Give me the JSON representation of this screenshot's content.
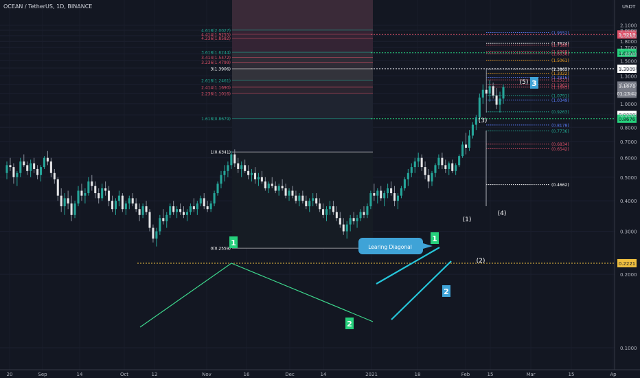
{
  "header": {
    "title": "OCEAN / TetherUS, 1D, BINANCE",
    "currency": "USDT"
  },
  "colors": {
    "background": "#131722",
    "up_candle": "#26a69a",
    "down_candle": "#ef5350",
    "candle_body_up": "#d1d4dc",
    "fib_green": "#22ab94",
    "fib_red": "#e0526a",
    "fib_white": "#ffffff",
    "fib_blue": "#5b7cfa",
    "fib_orange": "#f0a020",
    "trend_teal": "#26c6da",
    "label_green": "#26d07c",
    "label_blue": "#3fa3d7"
  },
  "chart_data": {
    "type": "candlestick",
    "symbol": "OCEAN / TetherUS",
    "interval": "1D",
    "exchange": "BINANCE",
    "y_scale": "log",
    "ylim": [
      0.08,
      2.2
    ],
    "y_ticks": [
      "2.1000",
      "2.0000",
      "1.9000",
      "1.8000",
      "1.7000",
      "1.6000",
      "1.5000",
      "1.4000",
      "1.3000",
      "1.2000",
      "1.1000",
      "1.0000",
      "0.9000",
      "0.8000",
      "0.7000",
      "0.6000",
      "0.5000",
      "0.4000",
      "0.3000",
      "0.2000",
      "0.1000"
    ],
    "x_ticks": [
      "20",
      "Sep",
      "14",
      "Oct",
      "12",
      "Nov",
      "16",
      "Dec",
      "14",
      "2021",
      "18",
      "Feb",
      "15",
      "Mar",
      "15",
      "Ap"
    ],
    "current_price": "1.1871",
    "countdown": "01:23:42",
    "price_tags": [
      {
        "label": "1.9213",
        "value": 1.9213,
        "color": "#e0526a"
      },
      {
        "label": "1.6170",
        "value": 1.617,
        "color": "#26d07c"
      },
      {
        "label": "1.3909",
        "value": 1.3909,
        "color": "#ffffff"
      },
      {
        "label": "0.9000",
        "value": 0.9,
        "color": "#ffffff"
      },
      {
        "label": "0.8676",
        "value": 0.8676,
        "color": "#26d07c"
      },
      {
        "label": "0.2221",
        "value": 0.2221,
        "color": "#f0c040"
      }
    ],
    "left_fib_levels": [
      {
        "label": "4.618(2.0027)",
        "value": 2.0027,
        "color": "#22ab94"
      },
      {
        "label": "4.414(1.9255)",
        "value": 1.9255,
        "color": "#e0526a"
      },
      {
        "label": "4.236(1.8582)",
        "value": 1.8582,
        "color": "#e0526a"
      },
      {
        "label": "3.618(1.6244)",
        "value": 1.6244,
        "color": "#22ab94"
      },
      {
        "label": "3.414(1.5472)",
        "value": 1.5472,
        "color": "#e0526a"
      },
      {
        "label": "3.236(1.4799)",
        "value": 1.4799,
        "color": "#e0526a"
      },
      {
        "label": "3(1.3906)",
        "value": 1.3906,
        "color": "#ffffff"
      },
      {
        "label": "2.618(1.2461)",
        "value": 1.2461,
        "color": "#22ab94"
      },
      {
        "label": "2.414(1.1690)",
        "value": 1.169,
        "color": "#e0526a"
      },
      {
        "label": "2.236(1.1016)",
        "value": 1.1016,
        "color": "#e0526a"
      },
      {
        "label": "1.618(0.8679)",
        "value": 0.8679,
        "color": "#22ab94"
      },
      {
        "label": "1(0.6341)",
        "value": 0.6341,
        "color": "#ffffff"
      },
      {
        "label": "0(0.2559)",
        "value": 0.2559,
        "color": "#ffffff"
      }
    ],
    "right_fib_levels": [
      {
        "label": "(1.9552)",
        "value": 1.9552,
        "color": "#5b7cfa"
      },
      {
        "label": "(1.7674)",
        "value": 1.7674,
        "color": "#ffffff"
      },
      {
        "label": "(1.7380)",
        "value": 1.738,
        "color": "#e0526a"
      },
      {
        "label": "(1.6368)",
        "value": 1.6368,
        "color": "#e0526a"
      },
      {
        "label": "(1.6036)",
        "value": 1.6036,
        "color": "#e0526a"
      },
      {
        "label": "(1.5061)",
        "value": 1.5061,
        "color": "#f0a020"
      },
      {
        "label": "(1.3865)",
        "value": 1.3865,
        "color": "#ffffff"
      },
      {
        "label": "(1.3322)",
        "value": 1.3322,
        "color": "#f0a020"
      },
      {
        "label": "(1.2816)",
        "value": 1.2816,
        "color": "#5b7cfa"
      },
      {
        "label": "(1.2521)",
        "value": 1.2521,
        "color": "#e0526a"
      },
      {
        "label": "(1.1962)",
        "value": 1.1962,
        "color": "#e0526a"
      },
      {
        "label": "(1.1693)",
        "value": 1.1693,
        "color": "#e0526a"
      },
      {
        "label": "(1.0791)",
        "value": 1.0791,
        "color": "#22ab94"
      },
      {
        "label": "(1.0349)",
        "value": 1.0349,
        "color": "#5b7cfa"
      },
      {
        "label": "(0.9263)",
        "value": 0.9263,
        "color": "#22ab94"
      },
      {
        "label": "(0.8178)",
        "value": 0.8178,
        "color": "#5b7cfa"
      },
      {
        "label": "(0.7736)",
        "value": 0.7736,
        "color": "#22ab94"
      },
      {
        "label": "(0.6834)",
        "value": 0.6834,
        "color": "#e0526a"
      },
      {
        "label": "(0.6542)",
        "value": 0.6542,
        "color": "#e0526a"
      },
      {
        "label": "(0.4662)",
        "value": 0.4662,
        "color": "#ffffff"
      }
    ],
    "wave_labels": [
      {
        "label": "(1)",
        "value": 0.86
      },
      {
        "label": "(2)",
        "value": 0.64
      },
      {
        "label": "(3)",
        "value": 1.47
      },
      {
        "label": "(4)",
        "value": 0.87
      },
      {
        "label": "(5)",
        "value": 1.68
      }
    ],
    "boxed_labels": [
      {
        "label": "1",
        "color": "#26d07c"
      },
      {
        "label": "2",
        "color": "#26d07c"
      },
      {
        "label": "1",
        "color": "#26d07c"
      },
      {
        "label": "2",
        "color": "#3fa3d7"
      },
      {
        "label": "3",
        "color": "#3fa3d7"
      }
    ],
    "callout": "Learing Diagonal",
    "candles": [
      [
        0.52,
        0.58,
        0.49,
        0.56
      ],
      [
        0.56,
        0.6,
        0.53,
        0.55
      ],
      [
        0.55,
        0.57,
        0.47,
        0.5
      ],
      [
        0.5,
        0.53,
        0.46,
        0.52
      ],
      [
        0.52,
        0.6,
        0.5,
        0.58
      ],
      [
        0.58,
        0.62,
        0.55,
        0.56
      ],
      [
        0.56,
        0.58,
        0.51,
        0.53
      ],
      [
        0.53,
        0.59,
        0.5,
        0.57
      ],
      [
        0.57,
        0.6,
        0.52,
        0.54
      ],
      [
        0.54,
        0.56,
        0.49,
        0.51
      ],
      [
        0.51,
        0.56,
        0.48,
        0.55
      ],
      [
        0.55,
        0.61,
        0.54,
        0.6
      ],
      [
        0.6,
        0.64,
        0.56,
        0.58
      ],
      [
        0.58,
        0.6,
        0.5,
        0.52
      ],
      [
        0.52,
        0.54,
        0.47,
        0.49
      ],
      [
        0.49,
        0.5,
        0.4,
        0.42
      ],
      [
        0.42,
        0.45,
        0.36,
        0.38
      ],
      [
        0.38,
        0.43,
        0.35,
        0.41
      ],
      [
        0.41,
        0.44,
        0.37,
        0.39
      ],
      [
        0.39,
        0.42,
        0.33,
        0.35
      ],
      [
        0.35,
        0.4,
        0.34,
        0.39
      ],
      [
        0.39,
        0.46,
        0.38,
        0.44
      ],
      [
        0.44,
        0.47,
        0.4,
        0.42
      ],
      [
        0.42,
        0.45,
        0.39,
        0.43
      ],
      [
        0.43,
        0.5,
        0.42,
        0.48
      ],
      [
        0.48,
        0.51,
        0.44,
        0.46
      ],
      [
        0.46,
        0.48,
        0.41,
        0.43
      ],
      [
        0.43,
        0.45,
        0.39,
        0.41
      ],
      [
        0.41,
        0.47,
        0.4,
        0.45
      ],
      [
        0.45,
        0.48,
        0.42,
        0.44
      ],
      [
        0.44,
        0.46,
        0.38,
        0.4
      ],
      [
        0.4,
        0.42,
        0.36,
        0.37
      ],
      [
        0.37,
        0.41,
        0.35,
        0.4
      ],
      [
        0.4,
        0.44,
        0.38,
        0.42
      ],
      [
        0.42,
        0.43,
        0.36,
        0.37
      ],
      [
        0.37,
        0.4,
        0.35,
        0.39
      ],
      [
        0.39,
        0.42,
        0.37,
        0.41
      ],
      [
        0.41,
        0.43,
        0.38,
        0.39
      ],
      [
        0.39,
        0.41,
        0.36,
        0.37
      ],
      [
        0.37,
        0.39,
        0.33,
        0.35
      ],
      [
        0.35,
        0.39,
        0.34,
        0.38
      ],
      [
        0.38,
        0.4,
        0.35,
        0.36
      ],
      [
        0.36,
        0.37,
        0.3,
        0.31
      ],
      [
        0.31,
        0.32,
        0.27,
        0.28
      ],
      [
        0.28,
        0.31,
        0.26,
        0.3
      ],
      [
        0.3,
        0.35,
        0.29,
        0.34
      ],
      [
        0.34,
        0.37,
        0.32,
        0.33
      ],
      [
        0.33,
        0.36,
        0.31,
        0.35
      ],
      [
        0.35,
        0.39,
        0.34,
        0.38
      ],
      [
        0.38,
        0.4,
        0.35,
        0.36
      ],
      [
        0.36,
        0.38,
        0.34,
        0.37
      ],
      [
        0.37,
        0.39,
        0.35,
        0.36
      ],
      [
        0.36,
        0.38,
        0.34,
        0.35
      ],
      [
        0.35,
        0.37,
        0.33,
        0.36
      ],
      [
        0.36,
        0.39,
        0.35,
        0.38
      ],
      [
        0.38,
        0.41,
        0.36,
        0.37
      ],
      [
        0.37,
        0.4,
        0.35,
        0.39
      ],
      [
        0.39,
        0.42,
        0.38,
        0.41
      ],
      [
        0.41,
        0.43,
        0.37,
        0.38
      ],
      [
        0.38,
        0.4,
        0.36,
        0.37
      ],
      [
        0.37,
        0.4,
        0.36,
        0.39
      ],
      [
        0.39,
        0.44,
        0.38,
        0.43
      ],
      [
        0.43,
        0.48,
        0.42,
        0.47
      ],
      [
        0.47,
        0.53,
        0.45,
        0.51
      ],
      [
        0.51,
        0.56,
        0.48,
        0.53
      ],
      [
        0.53,
        0.58,
        0.5,
        0.56
      ],
      [
        0.56,
        0.64,
        0.54,
        0.62
      ],
      [
        0.62,
        0.65,
        0.55,
        0.57
      ],
      [
        0.57,
        0.6,
        0.52,
        0.54
      ],
      [
        0.54,
        0.58,
        0.5,
        0.56
      ],
      [
        0.56,
        0.59,
        0.52,
        0.53
      ],
      [
        0.53,
        0.56,
        0.49,
        0.51
      ],
      [
        0.51,
        0.54,
        0.48,
        0.52
      ],
      [
        0.52,
        0.55,
        0.47,
        0.49
      ],
      [
        0.49,
        0.52,
        0.46,
        0.5
      ],
      [
        0.5,
        0.53,
        0.47,
        0.48
      ],
      [
        0.48,
        0.5,
        0.44,
        0.45
      ],
      [
        0.45,
        0.48,
        0.43,
        0.47
      ],
      [
        0.47,
        0.5,
        0.45,
        0.46
      ],
      [
        0.46,
        0.48,
        0.43,
        0.44
      ],
      [
        0.44,
        0.47,
        0.42,
        0.46
      ],
      [
        0.46,
        0.49,
        0.44,
        0.45
      ],
      [
        0.45,
        0.47,
        0.41,
        0.42
      ],
      [
        0.42,
        0.45,
        0.4,
        0.44
      ],
      [
        0.44,
        0.46,
        0.41,
        0.42
      ],
      [
        0.42,
        0.44,
        0.39,
        0.4
      ],
      [
        0.4,
        0.43,
        0.38,
        0.42
      ],
      [
        0.42,
        0.44,
        0.39,
        0.4
      ],
      [
        0.4,
        0.42,
        0.37,
        0.38
      ],
      [
        0.38,
        0.41,
        0.36,
        0.4
      ],
      [
        0.4,
        0.43,
        0.38,
        0.41
      ],
      [
        0.41,
        0.43,
        0.38,
        0.39
      ],
      [
        0.39,
        0.41,
        0.36,
        0.37
      ],
      [
        0.37,
        0.39,
        0.34,
        0.35
      ],
      [
        0.35,
        0.38,
        0.33,
        0.37
      ],
      [
        0.37,
        0.4,
        0.35,
        0.38
      ],
      [
        0.38,
        0.4,
        0.35,
        0.36
      ],
      [
        0.36,
        0.38,
        0.33,
        0.34
      ],
      [
        0.34,
        0.36,
        0.31,
        0.32
      ],
      [
        0.32,
        0.34,
        0.29,
        0.3
      ],
      [
        0.3,
        0.33,
        0.28,
        0.32
      ],
      [
        0.32,
        0.35,
        0.3,
        0.34
      ],
      [
        0.34,
        0.36,
        0.32,
        0.33
      ],
      [
        0.33,
        0.35,
        0.31,
        0.34
      ],
      [
        0.34,
        0.37,
        0.33,
        0.36
      ],
      [
        0.36,
        0.38,
        0.34,
        0.35
      ],
      [
        0.35,
        0.39,
        0.34,
        0.38
      ],
      [
        0.38,
        0.44,
        0.37,
        0.43
      ],
      [
        0.43,
        0.47,
        0.4,
        0.42
      ],
      [
        0.42,
        0.45,
        0.39,
        0.44
      ],
      [
        0.44,
        0.46,
        0.4,
        0.41
      ],
      [
        0.41,
        0.44,
        0.38,
        0.43
      ],
      [
        0.43,
        0.47,
        0.41,
        0.45
      ],
      [
        0.45,
        0.48,
        0.42,
        0.43
      ],
      [
        0.43,
        0.46,
        0.38,
        0.4
      ],
      [
        0.4,
        0.43,
        0.37,
        0.42
      ],
      [
        0.42,
        0.46,
        0.41,
        0.45
      ],
      [
        0.45,
        0.5,
        0.44,
        0.49
      ],
      [
        0.49,
        0.54,
        0.46,
        0.52
      ],
      [
        0.52,
        0.57,
        0.5,
        0.55
      ],
      [
        0.55,
        0.6,
        0.52,
        0.58
      ],
      [
        0.58,
        0.63,
        0.55,
        0.6
      ],
      [
        0.6,
        0.62,
        0.53,
        0.55
      ],
      [
        0.55,
        0.58,
        0.49,
        0.51
      ],
      [
        0.51,
        0.54,
        0.45,
        0.48
      ],
      [
        0.48,
        0.53,
        0.46,
        0.52
      ],
      [
        0.52,
        0.57,
        0.5,
        0.56
      ],
      [
        0.56,
        0.62,
        0.54,
        0.6
      ],
      [
        0.6,
        0.63,
        0.54,
        0.56
      ],
      [
        0.56,
        0.59,
        0.52,
        0.54
      ],
      [
        0.54,
        0.58,
        0.51,
        0.57
      ],
      [
        0.57,
        0.59,
        0.52,
        0.53
      ],
      [
        0.53,
        0.57,
        0.51,
        0.56
      ],
      [
        0.56,
        0.62,
        0.55,
        0.61
      ],
      [
        0.61,
        0.7,
        0.6,
        0.68
      ],
      [
        0.68,
        0.76,
        0.62,
        0.66
      ],
      [
        0.66,
        0.78,
        0.64,
        0.74
      ],
      [
        0.74,
        0.84,
        0.72,
        0.82
      ],
      [
        0.82,
        0.9,
        0.78,
        0.88
      ],
      [
        0.88,
        1.1,
        0.86,
        1.06
      ],
      [
        1.06,
        1.2,
        1.0,
        1.14
      ],
      [
        1.14,
        1.39,
        0.92,
        1.1
      ],
      [
        1.1,
        1.25,
        1.02,
        1.18
      ],
      [
        1.18,
        1.22,
        1.05,
        1.08
      ],
      [
        1.08,
        1.16,
        0.95,
        0.99
      ],
      [
        0.99,
        1.12,
        0.92,
        1.05
      ],
      [
        1.05,
        1.2,
        1.0,
        1.17
      ]
    ]
  }
}
